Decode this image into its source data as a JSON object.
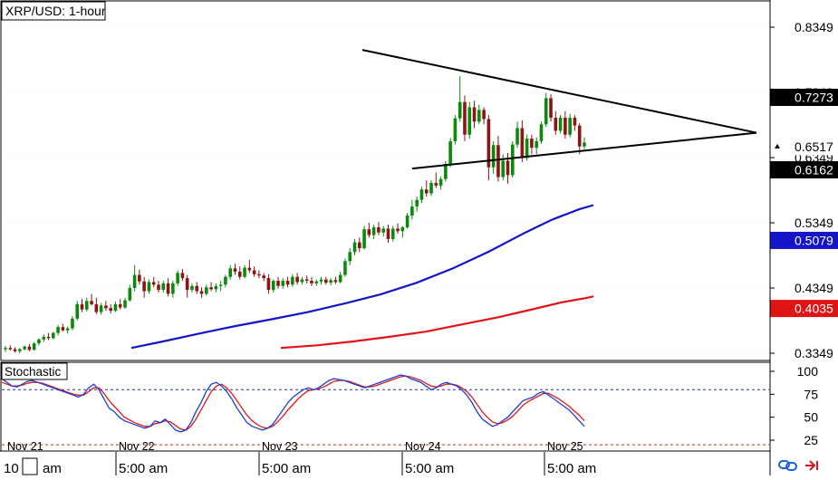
{
  "chart_title": "XRP/USD: 1-hour",
  "indicator_title": "Stochastic",
  "colors": {
    "up": "#0a8a0a",
    "down": "#8c1414",
    "ma_fast": "#1414c8",
    "ma_slow": "#e01414",
    "stoch_k": "#1f3fd8",
    "stoch_d": "#e01a1a",
    "triangle": "#000000",
    "grid": "#d8d8d8"
  },
  "price_axis": {
    "ticks": [
      "0.8349",
      "0.7349",
      "0.6349",
      "0.5349",
      "0.4349",
      "0.3349"
    ],
    "tick_values": [
      0.8349,
      0.7349,
      0.6349,
      0.5349,
      0.4349,
      0.3349
    ],
    "badges": [
      {
        "label": "0.7273",
        "value": 0.7273,
        "bg": "#000000",
        "fg": "#ffffff"
      },
      {
        "label": "0.6517",
        "value": 0.6517,
        "bg": "#ffffff",
        "fg": "#000000"
      },
      {
        "label": "0.6162",
        "value": 0.6162,
        "bg": "#000000",
        "fg": "#ffffff"
      },
      {
        "label": "0.5079",
        "value": 0.5079,
        "bg": "#1414c8",
        "fg": "#ffffff"
      },
      {
        "label": "0.4035",
        "value": 0.4035,
        "bg": "#e01414",
        "fg": "#ffffff"
      }
    ]
  },
  "stoch_axis": {
    "ticks": [
      "100",
      "75",
      "50",
      "25"
    ],
    "tick_values": [
      100,
      75,
      50,
      25
    ],
    "levels": [
      80,
      20
    ]
  },
  "date_labels": [
    "Nov 21",
    "Nov 22",
    "Nov 23",
    "Nov 24",
    "Nov 25"
  ],
  "time_labels": [
    "10",
    "am",
    "5:00 am",
    "5:00 am",
    "5:00 am",
    "5:00 am"
  ],
  "chart_data": {
    "type": "candlestick",
    "title": "XRP/USD: 1-hour",
    "ylim": [
      0.31,
      0.88
    ],
    "candles_ohlc": [
      [
        0.341,
        0.346,
        0.337,
        0.343
      ],
      [
        0.343,
        0.347,
        0.339,
        0.341
      ],
      [
        0.341,
        0.344,
        0.336,
        0.338
      ],
      [
        0.338,
        0.343,
        0.335,
        0.341
      ],
      [
        0.341,
        0.347,
        0.339,
        0.345
      ],
      [
        0.345,
        0.349,
        0.338,
        0.34
      ],
      [
        0.34,
        0.352,
        0.339,
        0.35
      ],
      [
        0.35,
        0.358,
        0.347,
        0.356
      ],
      [
        0.356,
        0.364,
        0.352,
        0.36
      ],
      [
        0.36,
        0.366,
        0.355,
        0.358
      ],
      [
        0.358,
        0.368,
        0.356,
        0.366
      ],
      [
        0.366,
        0.378,
        0.362,
        0.375
      ],
      [
        0.375,
        0.38,
        0.368,
        0.37
      ],
      [
        0.37,
        0.376,
        0.365,
        0.373
      ],
      [
        0.373,
        0.392,
        0.37,
        0.388
      ],
      [
        0.388,
        0.415,
        0.385,
        0.41
      ],
      [
        0.41,
        0.418,
        0.398,
        0.402
      ],
      [
        0.402,
        0.42,
        0.399,
        0.415
      ],
      [
        0.415,
        0.426,
        0.408,
        0.41
      ],
      [
        0.41,
        0.42,
        0.395,
        0.398
      ],
      [
        0.398,
        0.412,
        0.394,
        0.408
      ],
      [
        0.408,
        0.415,
        0.4,
        0.404
      ],
      [
        0.404,
        0.41,
        0.396,
        0.4
      ],
      [
        0.4,
        0.414,
        0.398,
        0.41
      ],
      [
        0.41,
        0.418,
        0.402,
        0.405
      ],
      [
        0.405,
        0.42,
        0.403,
        0.416
      ],
      [
        0.416,
        0.44,
        0.414,
        0.435
      ],
      [
        0.435,
        0.47,
        0.43,
        0.455
      ],
      [
        0.455,
        0.463,
        0.44,
        0.445
      ],
      [
        0.445,
        0.452,
        0.42,
        0.43
      ],
      [
        0.43,
        0.448,
        0.426,
        0.444
      ],
      [
        0.444,
        0.452,
        0.436,
        0.44
      ],
      [
        0.44,
        0.446,
        0.428,
        0.432
      ],
      [
        0.432,
        0.446,
        0.428,
        0.442
      ],
      [
        0.442,
        0.45,
        0.422,
        0.426
      ],
      [
        0.426,
        0.446,
        0.42,
        0.442
      ],
      [
        0.442,
        0.462,
        0.438,
        0.458
      ],
      [
        0.458,
        0.464,
        0.446,
        0.45
      ],
      [
        0.45,
        0.455,
        0.42,
        0.432
      ],
      [
        0.432,
        0.442,
        0.428,
        0.438
      ],
      [
        0.438,
        0.444,
        0.426,
        0.43
      ],
      [
        0.43,
        0.436,
        0.42,
        0.426
      ],
      [
        0.426,
        0.44,
        0.423,
        0.436
      ],
      [
        0.436,
        0.444,
        0.43,
        0.433
      ],
      [
        0.433,
        0.442,
        0.428,
        0.438
      ],
      [
        0.438,
        0.446,
        0.43,
        0.44
      ],
      [
        0.44,
        0.455,
        0.436,
        0.452
      ],
      [
        0.452,
        0.47,
        0.448,
        0.465
      ],
      [
        0.465,
        0.472,
        0.455,
        0.46
      ],
      [
        0.46,
        0.468,
        0.448,
        0.452
      ],
      [
        0.452,
        0.47,
        0.45,
        0.466
      ],
      [
        0.466,
        0.478,
        0.458,
        0.462
      ],
      [
        0.462,
        0.468,
        0.452,
        0.456
      ],
      [
        0.456,
        0.462,
        0.45,
        0.454
      ],
      [
        0.454,
        0.458,
        0.446,
        0.45
      ],
      [
        0.45,
        0.456,
        0.426,
        0.432
      ],
      [
        0.432,
        0.448,
        0.428,
        0.446
      ],
      [
        0.446,
        0.452,
        0.434,
        0.438
      ],
      [
        0.438,
        0.45,
        0.434,
        0.446
      ],
      [
        0.446,
        0.452,
        0.436,
        0.44
      ],
      [
        0.44,
        0.456,
        0.437,
        0.452
      ],
      [
        0.452,
        0.458,
        0.44,
        0.444
      ],
      [
        0.444,
        0.452,
        0.44,
        0.448
      ],
      [
        0.448,
        0.454,
        0.442,
        0.446
      ],
      [
        0.446,
        0.452,
        0.438,
        0.442
      ],
      [
        0.442,
        0.448,
        0.438,
        0.445
      ],
      [
        0.445,
        0.452,
        0.44,
        0.448
      ],
      [
        0.448,
        0.452,
        0.44,
        0.443
      ],
      [
        0.443,
        0.45,
        0.439,
        0.447
      ],
      [
        0.447,
        0.452,
        0.441,
        0.444
      ],
      [
        0.444,
        0.46,
        0.442,
        0.455
      ],
      [
        0.455,
        0.48,
        0.452,
        0.476
      ],
      [
        0.476,
        0.496,
        0.47,
        0.49
      ],
      [
        0.49,
        0.51,
        0.485,
        0.505
      ],
      [
        0.505,
        0.512,
        0.49,
        0.496
      ],
      [
        0.496,
        0.53,
        0.494,
        0.525
      ],
      [
        0.525,
        0.535,
        0.512,
        0.516
      ],
      [
        0.516,
        0.532,
        0.51,
        0.528
      ],
      [
        0.528,
        0.536,
        0.516,
        0.52
      ],
      [
        0.52,
        0.53,
        0.514,
        0.526
      ],
      [
        0.526,
        0.532,
        0.504,
        0.51
      ],
      [
        0.51,
        0.53,
        0.506,
        0.526
      ],
      [
        0.526,
        0.534,
        0.518,
        0.522
      ],
      [
        0.522,
        0.53,
        0.512,
        0.528
      ],
      [
        0.528,
        0.55,
        0.526,
        0.546
      ],
      [
        0.546,
        0.57,
        0.54,
        0.56
      ],
      [
        0.56,
        0.575,
        0.552,
        0.57
      ],
      [
        0.57,
        0.59,
        0.565,
        0.586
      ],
      [
        0.586,
        0.6,
        0.575,
        0.58
      ],
      [
        0.58,
        0.6,
        0.576,
        0.596
      ],
      [
        0.596,
        0.612,
        0.588,
        0.592
      ],
      [
        0.592,
        0.606,
        0.586,
        0.602
      ],
      [
        0.602,
        0.63,
        0.598,
        0.625
      ],
      [
        0.625,
        0.665,
        0.62,
        0.66
      ],
      [
        0.66,
        0.7,
        0.655,
        0.695
      ],
      [
        0.695,
        0.76,
        0.69,
        0.72
      ],
      [
        0.72,
        0.73,
        0.66,
        0.67
      ],
      [
        0.67,
        0.72,
        0.664,
        0.712
      ],
      [
        0.712,
        0.722,
        0.68,
        0.69
      ],
      [
        0.69,
        0.716,
        0.686,
        0.708
      ],
      [
        0.708,
        0.712,
        0.686,
        0.694
      ],
      [
        0.694,
        0.7,
        0.6,
        0.62
      ],
      [
        0.62,
        0.66,
        0.61,
        0.654
      ],
      [
        0.654,
        0.668,
        0.598,
        0.605
      ],
      [
        0.605,
        0.64,
        0.6,
        0.63
      ],
      [
        0.63,
        0.642,
        0.595,
        0.608
      ],
      [
        0.608,
        0.66,
        0.604,
        0.655
      ],
      [
        0.655,
        0.69,
        0.65,
        0.68
      ],
      [
        0.68,
        0.692,
        0.628,
        0.634
      ],
      [
        0.634,
        0.67,
        0.63,
        0.664
      ],
      [
        0.664,
        0.67,
        0.64,
        0.65
      ],
      [
        0.65,
        0.666,
        0.64,
        0.66
      ],
      [
        0.66,
        0.69,
        0.656,
        0.686
      ],
      [
        0.686,
        0.734,
        0.682,
        0.726
      ],
      [
        0.726,
        0.732,
        0.69,
        0.696
      ],
      [
        0.696,
        0.706,
        0.67,
        0.676
      ],
      [
        0.676,
        0.7,
        0.672,
        0.696
      ],
      [
        0.696,
        0.706,
        0.664,
        0.67
      ],
      [
        0.67,
        0.702,
        0.666,
        0.696
      ],
      [
        0.696,
        0.7,
        0.676,
        0.684
      ],
      [
        0.684,
        0.688,
        0.64,
        0.652
      ],
      [
        0.652,
        0.666,
        0.648,
        0.658
      ]
    ],
    "ma_fast": [
      [
        145,
        0.343
      ],
      [
        180,
        0.353
      ],
      [
        220,
        0.365
      ],
      [
        260,
        0.3765
      ],
      [
        300,
        0.387
      ],
      [
        340,
        0.398
      ],
      [
        380,
        0.411
      ],
      [
        420,
        0.425
      ],
      [
        460,
        0.443
      ],
      [
        500,
        0.465
      ],
      [
        540,
        0.491
      ],
      [
        580,
        0.52
      ],
      [
        610,
        0.54
      ],
      [
        640,
        0.556
      ],
      [
        655,
        0.562
      ]
    ],
    "ma_slow": [
      [
        310,
        0.343
      ],
      [
        350,
        0.347
      ],
      [
        390,
        0.353
      ],
      [
        430,
        0.36
      ],
      [
        470,
        0.368
      ],
      [
        510,
        0.379
      ],
      [
        550,
        0.39
      ],
      [
        590,
        0.403
      ],
      [
        620,
        0.413
      ],
      [
        645,
        0.419
      ],
      [
        655,
        0.422
      ]
    ],
    "triangle": {
      "upper": [
        [
          400,
          0.8
        ],
        [
          835,
          0.673
        ]
      ],
      "lower": [
        [
          455,
          0.618
        ],
        [
          835,
          0.673
        ]
      ]
    },
    "stochastic": {
      "k": [
        92,
        88,
        84,
        83,
        86,
        89,
        90,
        88,
        86,
        84,
        82,
        80,
        78,
        76,
        74,
        72,
        75,
        82,
        86,
        80,
        70,
        60,
        56,
        50,
        46,
        44,
        42,
        40,
        38,
        40,
        46,
        44,
        48,
        42,
        36,
        34,
        36,
        44,
        56,
        66,
        78,
        86,
        88,
        84,
        78,
        70,
        60,
        52,
        44,
        40,
        38,
        36,
        38,
        42,
        50,
        58,
        66,
        72,
        76,
        80,
        82,
        80,
        82,
        86,
        90,
        92,
        91,
        90,
        88,
        86,
        84,
        82,
        84,
        86,
        88,
        90,
        92,
        94,
        96,
        95,
        92,
        90,
        88,
        84,
        80,
        82,
        86,
        88,
        86,
        84,
        80,
        74,
        66,
        56,
        48,
        44,
        40,
        42,
        46,
        50,
        56,
        62,
        68,
        70,
        72,
        76,
        78,
        74,
        70,
        66,
        62,
        58,
        52,
        46,
        40
      ],
      "d": [
        88,
        86,
        84,
        84,
        85,
        87,
        88,
        88,
        87,
        85,
        83,
        81,
        79,
        77,
        75,
        74,
        74,
        78,
        82,
        82,
        76,
        68,
        62,
        56,
        50,
        47,
        44,
        42,
        40,
        40,
        43,
        44,
        46,
        45,
        41,
        37,
        36,
        40,
        48,
        58,
        68,
        78,
        84,
        86,
        82,
        76,
        68,
        60,
        52,
        46,
        42,
        39,
        38,
        40,
        45,
        51,
        58,
        64,
        70,
        75,
        79,
        80,
        81,
        83,
        86,
        89,
        90,
        90,
        89,
        87,
        85,
        83,
        83,
        84,
        86,
        88,
        90,
        92,
        94,
        95,
        94,
        92,
        90,
        87,
        84,
        83,
        84,
        86,
        86,
        85,
        82,
        78,
        72,
        64,
        56,
        50,
        45,
        43,
        44,
        47,
        51,
        57,
        63,
        67,
        70,
        73,
        76,
        76,
        73,
        70,
        66,
        62,
        57,
        52,
        46
      ]
    }
  }
}
